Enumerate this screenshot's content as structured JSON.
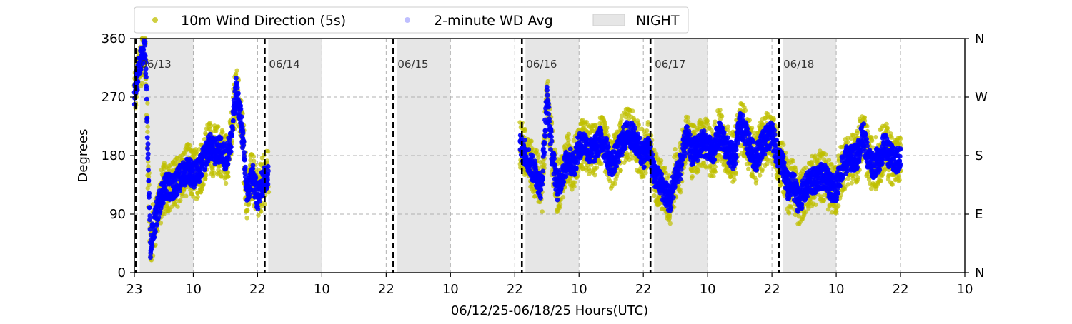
{
  "chart_data": {
    "type": "scatter",
    "ylabel": "Degrees",
    "xlabel": "06/12/25-06/18/25  Hours(UTC)",
    "ylim": [
      0,
      360
    ],
    "xlim_hours_utc": [
      "2025-06-12T23:00",
      "2025-06-19T10:00"
    ],
    "y_ticks": [
      "0",
      "90",
      "180",
      "270",
      "360"
    ],
    "y_ticks_right": [
      "N",
      "E",
      "S",
      "W",
      "N"
    ],
    "x_ticks": [
      {
        "t": "2025-06-12T23:00",
        "label": "23"
      },
      {
        "t": "2025-06-13T10:00",
        "label": "10"
      },
      {
        "t": "2025-06-13T22:00",
        "label": "22"
      },
      {
        "t": "2025-06-14T10:00",
        "label": "10"
      },
      {
        "t": "2025-06-14T22:00",
        "label": "22"
      },
      {
        "t": "2025-06-15T10:00",
        "label": "10"
      },
      {
        "t": "2025-06-15T22:00",
        "label": "22"
      },
      {
        "t": "2025-06-16T10:00",
        "label": "10"
      },
      {
        "t": "2025-06-16T22:00",
        "label": "22"
      },
      {
        "t": "2025-06-17T10:00",
        "label": "10"
      },
      {
        "t": "2025-06-17T22:00",
        "label": "22"
      },
      {
        "t": "2025-06-18T10:00",
        "label": "10"
      },
      {
        "t": "2025-06-18T22:00",
        "label": "22"
      },
      {
        "t": "2025-06-19T10:00",
        "label": "10"
      }
    ],
    "grid": true,
    "legend_placement": "top",
    "legend": [
      {
        "label": "10m Wind Direction (5s)",
        "color": "#bfbf00",
        "marker": "circle"
      },
      {
        "label": "2-minute WD Avg",
        "color": "#0000ff",
        "marker": "circle-faint"
      },
      {
        "label": "NIGHT",
        "color": "#e6e6e6",
        "marker": "box"
      }
    ],
    "night_periods": [
      {
        "start": "2025-06-13T00:00",
        "end": "2025-06-13T10:00"
      },
      {
        "start": "2025-06-14T00:00",
        "end": "2025-06-14T10:00"
      },
      {
        "start": "2025-06-15T00:00",
        "end": "2025-06-15T10:00"
      },
      {
        "start": "2025-06-16T00:00",
        "end": "2025-06-16T10:00"
      },
      {
        "start": "2025-06-17T00:00",
        "end": "2025-06-17T10:00"
      },
      {
        "start": "2025-06-18T00:00",
        "end": "2025-06-18T10:00"
      }
    ],
    "day_markers": [
      {
        "t": "2025-06-13T00:00",
        "label": "06/13"
      },
      {
        "t": "2025-06-14T00:00",
        "label": "06/14"
      },
      {
        "t": "2025-06-15T00:00",
        "label": "06/15"
      },
      {
        "t": "2025-06-16T00:00",
        "label": "06/16"
      },
      {
        "t": "2025-06-17T00:00",
        "label": "06/17"
      },
      {
        "t": "2025-06-18T00:00",
        "label": "06/18"
      }
    ],
    "series": [
      {
        "name": "10m Wind Direction (5s)",
        "color": "#bfbf00",
        "note_range": "yellow scatter spans approximately +/- 25 degrees around the average",
        "x": [
          "2025-06-12T23:00",
          "2025-06-13T00:00",
          "2025-06-13T01:00",
          "2025-06-13T02:00",
          "2025-06-13T03:00",
          "2025-06-13T04:00",
          "2025-06-13T05:00",
          "2025-06-13T06:00",
          "2025-06-13T07:00",
          "2025-06-13T08:00",
          "2025-06-13T09:00",
          "2025-06-13T10:00",
          "2025-06-13T11:00",
          "2025-06-13T12:00",
          "2025-06-13T13:00",
          "2025-06-13T14:00",
          "2025-06-13T15:00",
          "2025-06-13T16:00",
          "2025-06-13T17:00",
          "2025-06-13T18:00",
          "2025-06-13T19:00",
          "2025-06-13T20:00",
          "2025-06-13T21:00",
          "2025-06-13T22:00",
          "2025-06-13T23:00",
          "2025-06-14T00:00"
        ],
        "y": [
          275,
          320,
          345,
          40,
          85,
          120,
          135,
          130,
          140,
          150,
          160,
          150,
          155,
          175,
          195,
          185,
          190,
          175,
          200,
          280,
          230,
          120,
          150,
          115,
          140,
          150
        ]
      },
      {
        "name": "2-minute WD Avg",
        "color": "#0000ff",
        "x": [
          "2025-06-12T23:00",
          "2025-06-13T00:00",
          "2025-06-13T01:00",
          "2025-06-13T02:00",
          "2025-06-13T03:00",
          "2025-06-13T04:00",
          "2025-06-13T05:00",
          "2025-06-13T06:00",
          "2025-06-13T07:00",
          "2025-06-13T08:00",
          "2025-06-13T09:00",
          "2025-06-13T10:00",
          "2025-06-13T11:00",
          "2025-06-13T12:00",
          "2025-06-13T13:00",
          "2025-06-13T14:00",
          "2025-06-13T15:00",
          "2025-06-13T16:00",
          "2025-06-13T17:00",
          "2025-06-13T18:00",
          "2025-06-13T19:00",
          "2025-06-13T20:00",
          "2025-06-13T21:00",
          "2025-06-13T22:00",
          "2025-06-13T23:00",
          "2025-06-14T00:00"
        ],
        "y": [
          275,
          320,
          345,
          40,
          85,
          120,
          135,
          130,
          140,
          150,
          160,
          150,
          155,
          175,
          195,
          185,
          190,
          175,
          200,
          280,
          230,
          120,
          150,
          115,
          140,
          150
        ]
      },
      {
        "name": "10m Wind Direction (5s)",
        "color": "#bfbf00",
        "x": [
          "2025-06-15T23:00",
          "2025-06-16T00:00",
          "2025-06-16T01:00",
          "2025-06-16T02:00",
          "2025-06-16T03:00",
          "2025-06-16T04:00",
          "2025-06-16T05:00",
          "2025-06-16T06:00",
          "2025-06-16T07:00",
          "2025-06-16T08:00",
          "2025-06-16T09:00",
          "2025-06-16T10:00",
          "2025-06-16T11:00",
          "2025-06-16T12:00",
          "2025-06-16T13:00",
          "2025-06-16T14:00",
          "2025-06-16T15:00",
          "2025-06-16T16:00",
          "2025-06-16T17:00",
          "2025-06-16T18:00",
          "2025-06-16T19:00",
          "2025-06-16T20:00",
          "2025-06-16T21:00",
          "2025-06-16T22:00",
          "2025-06-16T23:00",
          "2025-06-17T00:00",
          "2025-06-17T01:00",
          "2025-06-17T02:00",
          "2025-06-17T03:00",
          "2025-06-17T04:00",
          "2025-06-17T05:00",
          "2025-06-17T06:00",
          "2025-06-17T07:00",
          "2025-06-17T08:00",
          "2025-06-17T09:00",
          "2025-06-17T10:00",
          "2025-06-17T11:00",
          "2025-06-17T12:00",
          "2025-06-17T13:00",
          "2025-06-17T14:00",
          "2025-06-17T15:00",
          "2025-06-17T16:00",
          "2025-06-17T17:00",
          "2025-06-17T18:00",
          "2025-06-17T19:00",
          "2025-06-17T20:00",
          "2025-06-17T21:00",
          "2025-06-17T22:00",
          "2025-06-17T23:00",
          "2025-06-18T00:00",
          "2025-06-18T01:00",
          "2025-06-18T02:00",
          "2025-06-18T03:00",
          "2025-06-18T04:00",
          "2025-06-18T05:00",
          "2025-06-18T06:00",
          "2025-06-18T07:00",
          "2025-06-18T08:00",
          "2025-06-18T09:00",
          "2025-06-18T10:00",
          "2025-06-18T11:00",
          "2025-06-18T12:00",
          "2025-06-18T13:00",
          "2025-06-18T14:00",
          "2025-06-18T15:00",
          "2025-06-18T16:00",
          "2025-06-18T17:00",
          "2025-06-18T18:00",
          "2025-06-18T19:00",
          "2025-06-18T20:00",
          "2025-06-18T21:00",
          "2025-06-18T22:00"
        ],
        "y": [
          195,
          185,
          165,
          150,
          130,
          270,
          180,
          130,
          155,
          175,
          165,
          195,
          200,
          185,
          190,
          205,
          190,
          165,
          180,
          200,
          215,
          210,
          195,
          180,
          195,
          150,
          140,
          125,
          110,
          150,
          165,
          210,
          185,
          190,
          200,
          195,
          180,
          215,
          200,
          185,
          175,
          230,
          215,
          190,
          175,
          195,
          205,
          215,
          180,
          165,
          130,
          135,
          110,
          125,
          140,
          140,
          150,
          145,
          130,
          130,
          160,
          175,
          175,
          180,
          215,
          175,
          165,
          175,
          195,
          180,
          170,
          175
        ]
      },
      {
        "name": "2-minute WD Avg",
        "color": "#0000ff",
        "x": [
          "2025-06-15T23:00",
          "2025-06-16T00:00",
          "2025-06-16T01:00",
          "2025-06-16T02:00",
          "2025-06-16T03:00",
          "2025-06-16T04:00",
          "2025-06-16T05:00",
          "2025-06-16T06:00",
          "2025-06-16T07:00",
          "2025-06-16T08:00",
          "2025-06-16T09:00",
          "2025-06-16T10:00",
          "2025-06-16T11:00",
          "2025-06-16T12:00",
          "2025-06-16T13:00",
          "2025-06-16T14:00",
          "2025-06-16T15:00",
          "2025-06-16T16:00",
          "2025-06-16T17:00",
          "2025-06-16T18:00",
          "2025-06-16T19:00",
          "2025-06-16T20:00",
          "2025-06-16T21:00",
          "2025-06-16T22:00",
          "2025-06-16T23:00",
          "2025-06-17T00:00",
          "2025-06-17T01:00",
          "2025-06-17T02:00",
          "2025-06-17T03:00",
          "2025-06-17T04:00",
          "2025-06-17T05:00",
          "2025-06-17T06:00",
          "2025-06-17T07:00",
          "2025-06-17T08:00",
          "2025-06-17T09:00",
          "2025-06-17T10:00",
          "2025-06-17T11:00",
          "2025-06-17T12:00",
          "2025-06-17T13:00",
          "2025-06-17T14:00",
          "2025-06-17T15:00",
          "2025-06-17T16:00",
          "2025-06-17T17:00",
          "2025-06-17T18:00",
          "2025-06-17T19:00",
          "2025-06-17T20:00",
          "2025-06-17T21:00",
          "2025-06-17T22:00",
          "2025-06-17T23:00",
          "2025-06-18T00:00",
          "2025-06-18T01:00",
          "2025-06-18T02:00",
          "2025-06-18T03:00",
          "2025-06-18T04:00",
          "2025-06-18T05:00",
          "2025-06-18T06:00",
          "2025-06-18T07:00",
          "2025-06-18T08:00",
          "2025-06-18T09:00",
          "2025-06-18T10:00",
          "2025-06-18T11:00",
          "2025-06-18T12:00",
          "2025-06-18T13:00",
          "2025-06-18T14:00",
          "2025-06-18T15:00",
          "2025-06-18T16:00",
          "2025-06-18T17:00",
          "2025-06-18T18:00",
          "2025-06-18T19:00",
          "2025-06-18T20:00",
          "2025-06-18T21:00",
          "2025-06-18T22:00"
        ],
        "y": [
          195,
          185,
          165,
          150,
          130,
          270,
          180,
          130,
          155,
          175,
          165,
          195,
          200,
          185,
          190,
          205,
          190,
          165,
          180,
          200,
          215,
          210,
          195,
          180,
          195,
          150,
          140,
          125,
          110,
          150,
          165,
          210,
          185,
          190,
          200,
          195,
          180,
          215,
          200,
          185,
          175,
          230,
          215,
          190,
          175,
          195,
          205,
          215,
          180,
          165,
          130,
          135,
          110,
          125,
          140,
          140,
          150,
          145,
          130,
          130,
          160,
          175,
          175,
          180,
          215,
          175,
          165,
          175,
          195,
          180,
          170,
          175
        ]
      }
    ]
  }
}
